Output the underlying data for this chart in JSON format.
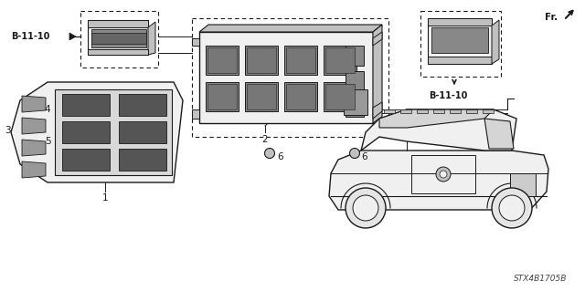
{
  "bg_color": "#ffffff",
  "lc": "#1a1a1a",
  "diagram_code": "STX4B1705B",
  "fr_label": "Fr.",
  "ref_label": "B-11-10",
  "fig_width": 6.4,
  "fig_height": 3.19,
  "dpi": 100,
  "gray_fill": "#e0e0e0",
  "dark_fill": "#888888",
  "mid_fill": "#c0c0c0",
  "light_fill": "#f0f0f0"
}
